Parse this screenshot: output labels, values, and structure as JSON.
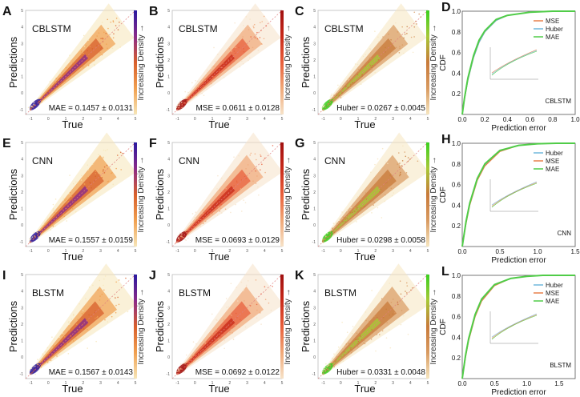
{
  "colors": {
    "MAE_cmap": [
      "#f6e6b8",
      "#f0a050",
      "#d8602c",
      "#8a2a8a",
      "#2a1aa0"
    ],
    "MSE_cmap": [
      "#f6e2c8",
      "#f0a878",
      "#e8603c",
      "#c82a1a",
      "#a01010"
    ],
    "Huber_cmap": [
      "#f6e6c0",
      "#d89a60",
      "#c87a3a",
      "#a8c838",
      "#3ad020"
    ],
    "MSE": "#e8804a",
    "Huber": "#70b8dc",
    "MAE": "#50cc48",
    "diagonal": "#e08080"
  },
  "colorbar_label": "Increasing Density →",
  "chart_data": [
    {
      "type": "scatter",
      "letter": "A",
      "model": "CBLSTM",
      "loss": "MAE",
      "metric": "MAE = 0.1457 ± 0.0131",
      "xlabel": "True",
      "ylabel": "Predictions",
      "xlim": [
        -1.3,
        5
      ],
      "ylim": [
        -1.3,
        5
      ],
      "ticks": [
        "-1",
        "0",
        "1",
        "2",
        "3",
        "4",
        "5"
      ],
      "spread": 1.0
    },
    {
      "type": "scatter",
      "letter": "B",
      "model": "CBLSTM",
      "loss": "MSE",
      "metric": "MSE = 0.0611 ± 0.0128",
      "xlabel": "True",
      "ylabel": "Predictions",
      "xlim": [
        -1.3,
        5
      ],
      "ylim": [
        -1.3,
        5
      ],
      "ticks": [
        "-1",
        "0",
        "1",
        "2",
        "3",
        "4",
        "5"
      ],
      "spread": 1.0
    },
    {
      "type": "scatter",
      "letter": "C",
      "model": "CBLSTM",
      "loss": "Huber",
      "metric": "Huber = 0.0267 ± 0.0045",
      "xlabel": "True",
      "ylabel": "Predictions",
      "xlim": [
        -1.3,
        5
      ],
      "ylim": [
        -1.3,
        5
      ],
      "ticks": [
        "-1",
        "0",
        "1",
        "2",
        "3",
        "4",
        "5"
      ],
      "spread": 1.0
    },
    {
      "type": "line",
      "letter": "D",
      "model": "CBLSTM",
      "xlabel": "Prediction error",
      "ylabel": "CDF",
      "xlim": [
        0,
        1.0
      ],
      "ylim": [
        0,
        1.0
      ],
      "xticks": [
        "0.0",
        "0.2",
        "0.4",
        "0.6",
        "0.8",
        "1.0"
      ],
      "yticks": [
        "0.2",
        "0.4",
        "0.6",
        "0.8",
        "1.0"
      ],
      "series": [
        {
          "name": "MSE",
          "x": [
            0,
            0.02,
            0.05,
            0.1,
            0.15,
            0.2,
            0.3,
            0.4,
            0.6,
            0.8,
            1.0
          ],
          "y": [
            0,
            0.15,
            0.33,
            0.55,
            0.7,
            0.8,
            0.91,
            0.96,
            0.99,
            1.0,
            1.0
          ]
        },
        {
          "name": "Huber",
          "x": [
            0,
            0.02,
            0.05,
            0.1,
            0.15,
            0.2,
            0.3,
            0.4,
            0.6,
            0.8,
            1.0
          ],
          "y": [
            0,
            0.15,
            0.33,
            0.55,
            0.7,
            0.8,
            0.91,
            0.96,
            0.99,
            1.0,
            1.0
          ]
        },
        {
          "name": "MAE",
          "x": [
            0,
            0.02,
            0.05,
            0.1,
            0.15,
            0.2,
            0.3,
            0.4,
            0.6,
            0.8,
            1.0
          ],
          "y": [
            0,
            0.16,
            0.35,
            0.57,
            0.72,
            0.81,
            0.92,
            0.96,
            0.99,
            1.0,
            1.0
          ]
        }
      ]
    },
    {
      "type": "scatter",
      "letter": "E",
      "model": "CNN",
      "loss": "MAE",
      "metric": "MAE = 0.1557 ± 0.0159",
      "xlabel": "True",
      "ylabel": "Predictions",
      "xlim": [
        -1.3,
        5
      ],
      "ylim": [
        -1.3,
        5
      ],
      "ticks": [
        "-1",
        "0",
        "1",
        "2",
        "3",
        "4",
        "5"
      ],
      "spread": 1.15
    },
    {
      "type": "scatter",
      "letter": "F",
      "model": "CNN",
      "loss": "MSE",
      "metric": "MSE = 0.0693 ± 0.0129",
      "xlabel": "True",
      "ylabel": "Predictions",
      "xlim": [
        -1.3,
        5
      ],
      "ylim": [
        -1.3,
        5
      ],
      "ticks": [
        "-1",
        "0",
        "1",
        "2",
        "3",
        "4",
        "5"
      ],
      "spread": 1.15
    },
    {
      "type": "scatter",
      "letter": "G",
      "model": "CNN",
      "loss": "Huber",
      "metric": "Huber = 0.0298 ± 0.0058",
      "xlabel": "True",
      "ylabel": "Predictions",
      "xlim": [
        -1.3,
        5
      ],
      "ylim": [
        -1.3,
        5
      ],
      "ticks": [
        "-1",
        "0",
        "1",
        "2",
        "3",
        "4",
        "5"
      ],
      "spread": 1.15
    },
    {
      "type": "line",
      "letter": "H",
      "model": "CNN",
      "xlabel": "Prediction error",
      "ylabel": "CDF",
      "xlim": [
        0,
        1.5
      ],
      "ylim": [
        0,
        1.0
      ],
      "xticks": [
        "0.0",
        "0.5",
        "1.0",
        "1.5"
      ],
      "yticks": [
        "0.2",
        "0.4",
        "0.6",
        "0.8",
        "1.0"
      ],
      "series": [
        {
          "name": "Huber",
          "x": [
            0,
            0.05,
            0.1,
            0.2,
            0.3,
            0.5,
            0.75,
            1.0,
            1.25,
            1.5
          ],
          "y": [
            0,
            0.23,
            0.41,
            0.65,
            0.79,
            0.93,
            0.98,
            0.995,
            1.0,
            1.0
          ]
        },
        {
          "name": "MSE",
          "x": [
            0,
            0.05,
            0.1,
            0.2,
            0.3,
            0.5,
            0.75,
            1.0,
            1.25,
            1.5
          ],
          "y": [
            0,
            0.22,
            0.4,
            0.64,
            0.78,
            0.92,
            0.98,
            0.995,
            1.0,
            1.0
          ]
        },
        {
          "name": "MAE",
          "x": [
            0,
            0.05,
            0.1,
            0.2,
            0.3,
            0.5,
            0.75,
            1.0,
            1.25,
            1.5
          ],
          "y": [
            0,
            0.24,
            0.42,
            0.66,
            0.8,
            0.93,
            0.98,
            0.995,
            1.0,
            1.0
          ]
        }
      ]
    },
    {
      "type": "scatter",
      "letter": "I",
      "model": "BLSTM",
      "loss": "MAE",
      "metric": "MAE = 0.1567 ± 0.0143",
      "xlabel": "True",
      "ylabel": "Predictions",
      "xlim": [
        -1.3,
        5
      ],
      "ylim": [
        -1.3,
        5
      ],
      "ticks": [
        "-1",
        "0",
        "1",
        "2",
        "3",
        "4",
        "5"
      ],
      "spread": 1.2
    },
    {
      "type": "scatter",
      "letter": "J",
      "model": "BLSTM",
      "loss": "MSE",
      "metric": "MSE = 0.0692 ± 0.0122",
      "xlabel": "True",
      "ylabel": "Predictions",
      "xlim": [
        -1.3,
        5
      ],
      "ylim": [
        -1.3,
        5
      ],
      "ticks": [
        "-1",
        "0",
        "1",
        "2",
        "3",
        "4",
        "5"
      ],
      "spread": 1.2
    },
    {
      "type": "scatter",
      "letter": "K",
      "model": "BLSTM",
      "loss": "Huber",
      "metric": "Huber = 0.0331 ± 0.0048",
      "xlabel": "True",
      "ylabel": "Predictions",
      "xlim": [
        -1.3,
        5
      ],
      "ylim": [
        -1.3,
        5
      ],
      "ticks": [
        "-1",
        "0",
        "1",
        "2",
        "3",
        "4",
        "5"
      ],
      "spread": 1.2
    },
    {
      "type": "line",
      "letter": "L",
      "model": "BLSTM",
      "xlabel": "Prediction error",
      "ylabel": "CDF",
      "xlim": [
        0,
        1.75
      ],
      "ylim": [
        0,
        1.0
      ],
      "xticks": [
        "0.0",
        "0.5",
        "1.0",
        "1.5"
      ],
      "yticks": [
        "0.2",
        "0.4",
        "0.6",
        "0.8",
        "1.0"
      ],
      "series": [
        {
          "name": "Huber",
          "x": [
            0,
            0.05,
            0.1,
            0.2,
            0.3,
            0.5,
            0.75,
            1.0,
            1.25,
            1.5,
            1.75
          ],
          "y": [
            0,
            0.21,
            0.38,
            0.61,
            0.76,
            0.91,
            0.97,
            0.99,
            1.0,
            1.0,
            1.0
          ]
        },
        {
          "name": "MSE",
          "x": [
            0,
            0.05,
            0.1,
            0.2,
            0.3,
            0.5,
            0.75,
            1.0,
            1.25,
            1.5,
            1.75
          ],
          "y": [
            0,
            0.2,
            0.37,
            0.6,
            0.75,
            0.9,
            0.97,
            0.99,
            1.0,
            1.0,
            1.0
          ]
        },
        {
          "name": "MAE",
          "x": [
            0,
            0.05,
            0.1,
            0.2,
            0.3,
            0.5,
            0.75,
            1.0,
            1.25,
            1.5,
            1.75
          ],
          "y": [
            0,
            0.22,
            0.39,
            0.62,
            0.77,
            0.91,
            0.97,
            0.99,
            1.0,
            1.0,
            1.0
          ]
        }
      ]
    }
  ]
}
